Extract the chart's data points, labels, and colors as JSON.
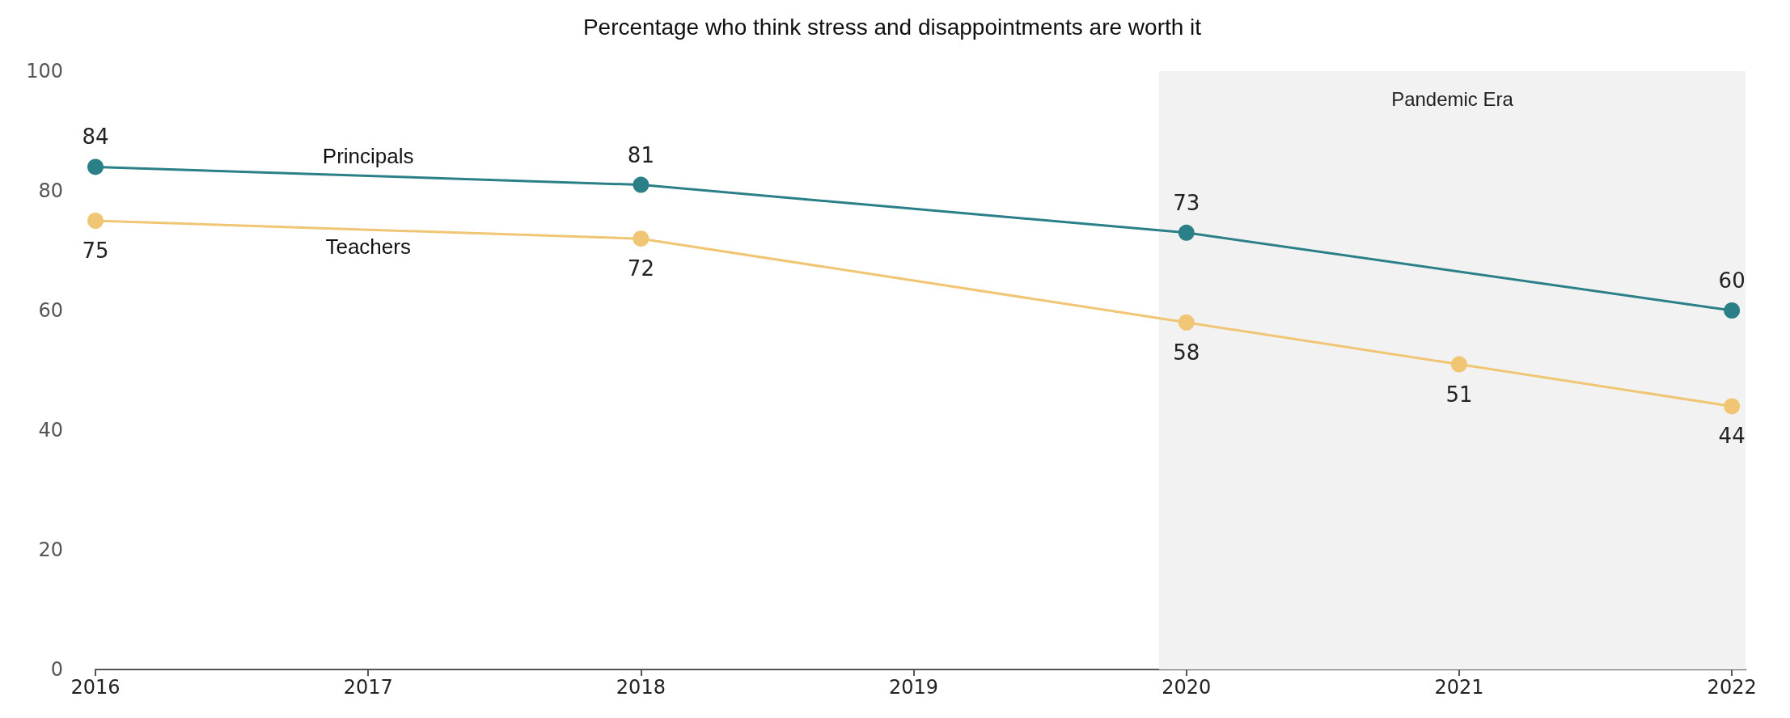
{
  "chart_data": {
    "type": "line",
    "title": "Percentage who think stress and disappointments are worth it",
    "xlim": [
      2016,
      2022.05
    ],
    "xticks": [
      2016,
      2017,
      2018,
      2019,
      2020,
      2021,
      2022
    ],
    "ylim": [
      0,
      100
    ],
    "yticks": [
      0,
      20,
      40,
      60,
      80,
      100
    ],
    "series": [
      {
        "name": "Principals",
        "color": "#2b8088",
        "x": [
          2016,
          2018,
          2020,
          2022
        ],
        "values": [
          84,
          81,
          73,
          60
        ]
      },
      {
        "name": "Teachers",
        "color": "#f0c674",
        "x": [
          2016,
          2018,
          2020,
          2021,
          2022
        ],
        "values": [
          75,
          72,
          58,
          51,
          44
        ]
      }
    ],
    "bands": [
      {
        "axis": "x",
        "from": 2019.9,
        "to": 2022.05,
        "label": "Pandemic Era",
        "color": "#f2f2f2"
      }
    ],
    "data_labels": true,
    "marker": "circle",
    "line_style": "solid",
    "grid": false,
    "legend": false
  }
}
